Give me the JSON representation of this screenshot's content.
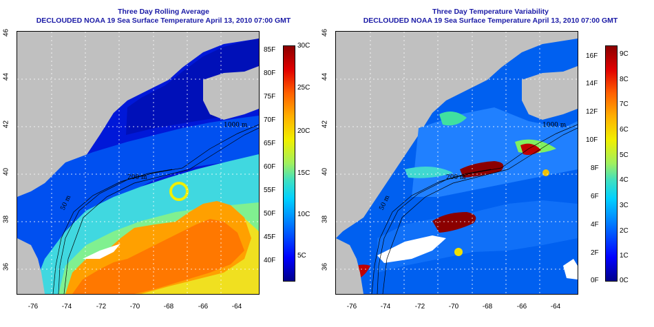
{
  "panels": [
    {
      "title_line1": "Three Day Rolling Average",
      "title_line2": "DECLOUDED NOAA 19 Sea Surface Temperature April 13, 2010 07:00 GMT",
      "lat_ticks": [
        "36",
        "38",
        "40",
        "42",
        "44",
        "46"
      ],
      "lon_ticks": [
        "-76",
        "-74",
        "-72",
        "-70",
        "-68",
        "-66",
        "-64"
      ],
      "colorbar": {
        "left_ticks": [
          "40F",
          "45F",
          "50F",
          "55F",
          "60F",
          "65F",
          "70F",
          "75F",
          "80F",
          "85F"
        ],
        "right_ticks": [
          "5C",
          "10C",
          "15C",
          "20C",
          "25C",
          "30C"
        ],
        "range_c": [
          2,
          30
        ],
        "colors": [
          "#00008b",
          "#0000ff",
          "#0080ff",
          "#00d0ff",
          "#40e0c0",
          "#a0f060",
          "#f0f000",
          "#ffb000",
          "#ff6000",
          "#e00000",
          "#8b0000"
        ]
      },
      "contour_labels": [
        "200 m",
        "1000 m",
        "50 m"
      ]
    },
    {
      "title_line1": "Three Day Temperature Variability",
      "title_line2": "DECLOUDED NOAA 19 Sea Surface Temperature April 13, 2010 07:00 GMT",
      "lat_ticks": [
        "36",
        "38",
        "40",
        "42",
        "44",
        "46"
      ],
      "lon_ticks": [
        "-76",
        "-74",
        "-72",
        "-70",
        "-68",
        "-66",
        "-64"
      ],
      "colorbar": {
        "left_ticks": [
          "0F",
          "2F",
          "4F",
          "6F",
          "8F",
          "10F",
          "12F",
          "14F",
          "16F"
        ],
        "right_ticks": [
          "0C",
          "1C",
          "2C",
          "3C",
          "4C",
          "5C",
          "6C",
          "7C",
          "8C",
          "9C"
        ],
        "range_c": [
          0,
          9.5
        ],
        "colors": [
          "#00008b",
          "#0000ff",
          "#0080ff",
          "#00d0ff",
          "#40e0c0",
          "#a0f060",
          "#f0f000",
          "#ffb000",
          "#ff6000",
          "#e00000",
          "#8b0000"
        ]
      },
      "contour_labels": [
        "200 m",
        "1000 m",
        "50 m"
      ]
    }
  ],
  "colors": {
    "land": "#c0c0c0",
    "title": "#1a1aa6",
    "cloud_mask": "#ffffff"
  }
}
